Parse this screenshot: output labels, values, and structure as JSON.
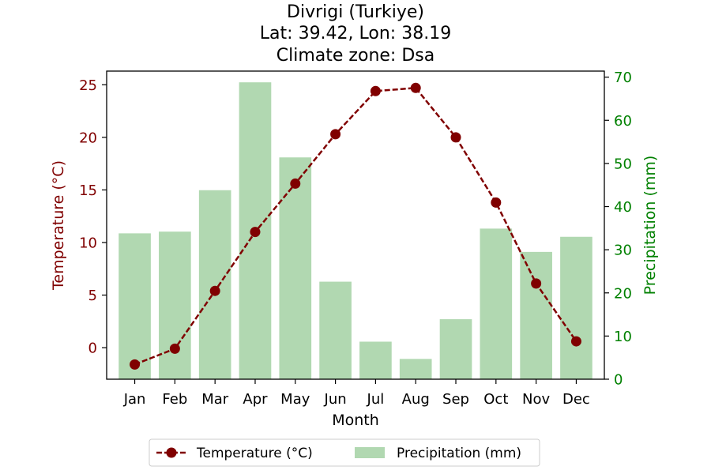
{
  "colors": {
    "temperature": "#800000",
    "precipitation": "#b1d8b1",
    "precipitation_axis": "#008000"
  },
  "chart_data": {
    "type": "bar",
    "title_lines": [
      "Divrigi (Turkiye)",
      "Lat: 39.42, Lon: 38.19",
      "Climate zone: Dsa"
    ],
    "xlabel": "Month",
    "ylabel_left": "Temperature (°C)",
    "ylabel_right": "Precipitation (mm)",
    "categories": [
      "Jan",
      "Feb",
      "Mar",
      "Apr",
      "May",
      "Jun",
      "Jul",
      "Aug",
      "Sep",
      "Oct",
      "Nov",
      "Dec"
    ],
    "ylim_left": [
      -3,
      26.3
    ],
    "ylim_right": [
      0,
      71.4
    ],
    "yticks_left": [
      "0",
      "5",
      "10",
      "15",
      "20",
      "25"
    ],
    "yticks_right": [
      "0",
      "10",
      "20",
      "30",
      "40",
      "50",
      "60",
      "70"
    ],
    "series": [
      {
        "name": "Temperature (°C)",
        "type": "line",
        "axis": "left",
        "values": [
          -1.6,
          -0.1,
          5.4,
          11.0,
          15.6,
          20.3,
          24.4,
          24.7,
          20.0,
          13.8,
          6.1,
          0.6
        ]
      },
      {
        "name": "Precipitation (mm)",
        "type": "bar",
        "axis": "right",
        "values": [
          33.8,
          34.2,
          43.8,
          68.8,
          51.4,
          22.6,
          8.7,
          4.7,
          13.9,
          34.9,
          29.5,
          33.0
        ]
      }
    ],
    "grid": false,
    "legend_position": "bottom-center"
  }
}
